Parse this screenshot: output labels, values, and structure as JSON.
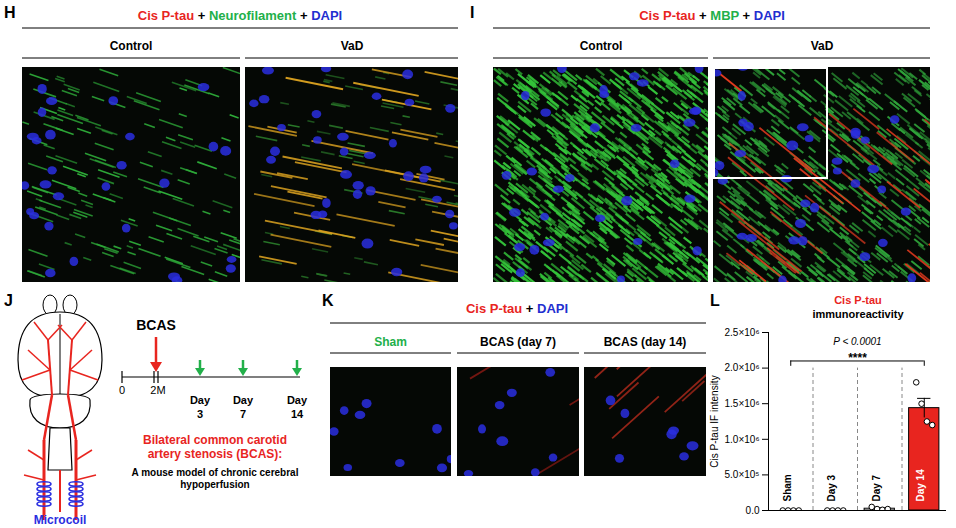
{
  "figure": {
    "H": {
      "label": "H",
      "title": [
        {
          "text": "Cis P-tau",
          "color": "#e8251f"
        },
        {
          "text": "+",
          "color": "#000000"
        },
        {
          "text": "Neurofilament",
          "color": "#22b04a"
        },
        {
          "text": "+",
          "color": "#000000"
        },
        {
          "text": "DAPI",
          "color": "#1f2fd0"
        }
      ],
      "columns": [
        "Control",
        "VaD"
      ]
    },
    "I": {
      "label": "I",
      "title": [
        {
          "text": "Cis P-tau",
          "color": "#e8251f"
        },
        {
          "text": "+",
          "color": "#000000"
        },
        {
          "text": "MBP",
          "color": "#22b04a"
        },
        {
          "text": "+",
          "color": "#000000"
        },
        {
          "text": "DAPI",
          "color": "#1f2fd0"
        }
      ],
      "columns": [
        "Control",
        "VaD"
      ]
    },
    "J": {
      "label": "J",
      "event": "BCAS",
      "timeline": [
        "0",
        "2M"
      ],
      "timepoints": [
        "Day 3",
        "Day 7",
        "Day 14"
      ],
      "description_title": [
        "Bilateral common carotid",
        "artery stenosis (BCAS):"
      ],
      "description": [
        "A mouse model of chronic cerebral",
        "hypoperfusion"
      ],
      "device": "Microcoil"
    },
    "K": {
      "label": "K",
      "title": [
        {
          "text": "Cis P-tau",
          "color": "#e8251f"
        },
        {
          "text": "+",
          "color": "#000000"
        },
        {
          "text": "DAPI",
          "color": "#1f2fd0"
        }
      ],
      "columns": [
        {
          "text": "Sham",
          "color": "#22b04a"
        },
        {
          "text": "BCAS (day 7)",
          "color": "#000000"
        },
        {
          "text": "BCAS (day 14)",
          "color": "#000000"
        }
      ]
    }
  },
  "chart_data": {
    "label": "L",
    "type": "bar",
    "title": {
      "text": "Cis P-tau",
      "color": "#e8251f"
    },
    "subtitle": "immunoreactivity",
    "y_label": "Cis P-tau IF intensity",
    "categories": [
      "Sham",
      "Day 3",
      "Day 7",
      "Day 14"
    ],
    "values": [
      0,
      0,
      25000,
      1437500
    ],
    "errors": [
      0,
      0,
      9000,
      137500
    ],
    "points": [
      [
        0,
        0,
        0,
        0
      ],
      [
        0,
        0,
        0,
        0
      ],
      [
        50000,
        20000,
        10000,
        20000
      ],
      [
        1800000,
        1500000,
        1250000,
        1200000
      ]
    ],
    "colors": [
      "#ffffff",
      "#ffffff",
      "#ffffff",
      "#e8251f"
    ],
    "ylim": [
      0,
      2500000
    ],
    "yticks": [
      {
        "value": 0,
        "label": "0.0"
      },
      {
        "value": 500000,
        "label": "5.0×10⁵"
      },
      {
        "value": 1000000,
        "label": "1.0×10⁶"
      },
      {
        "value": 1500000,
        "label": "1.5×10⁶"
      },
      {
        "value": 2000000,
        "label": "2.0×10⁶"
      },
      {
        "value": 2500000,
        "label": "2.5×10⁶"
      }
    ],
    "tick_labels": "y",
    "annotation": {
      "from": "Sham",
      "to": "Day 14",
      "p": "P < 0.0001",
      "stars": "****"
    }
  }
}
